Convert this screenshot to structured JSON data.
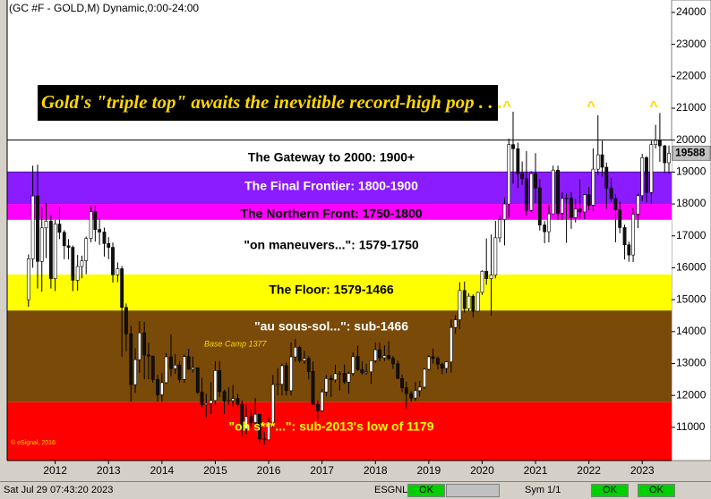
{
  "chart_data": {
    "type": "candlestick",
    "title": "(GC #F - GOLD,M) Dynamic,0:00-24:00",
    "x": [
      2011.5,
      2011.58,
      2011.67,
      2011.75,
      2011.83,
      2011.92,
      2012,
      2012.08,
      2012.17,
      2012.25,
      2012.33,
      2012.42,
      2012.5,
      2012.58,
      2012.67,
      2012.75,
      2012.83,
      2012.92,
      2013,
      2013.08,
      2013.17,
      2013.25,
      2013.33,
      2013.42,
      2013.5,
      2013.58,
      2013.67,
      2013.75,
      2013.83,
      2013.92,
      2014,
      2014.08,
      2014.17,
      2014.25,
      2014.33,
      2014.42,
      2014.5,
      2014.58,
      2014.67,
      2014.75,
      2014.83,
      2014.92,
      2015,
      2015.08,
      2015.17,
      2015.25,
      2015.33,
      2015.42,
      2015.5,
      2015.58,
      2015.67,
      2015.75,
      2015.83,
      2015.92,
      2016,
      2016.08,
      2016.17,
      2016.25,
      2016.33,
      2016.42,
      2016.5,
      2016.58,
      2016.67,
      2016.75,
      2016.83,
      2016.92,
      2017,
      2017.08,
      2017.17,
      2017.25,
      2017.33,
      2017.42,
      2017.5,
      2017.58,
      2017.67,
      2017.75,
      2017.83,
      2017.92,
      2018,
      2018.08,
      2018.17,
      2018.25,
      2018.33,
      2018.42,
      2018.5,
      2018.58,
      2018.67,
      2018.75,
      2018.83,
      2018.92,
      2019,
      2019.08,
      2019.17,
      2019.25,
      2019.33,
      2019.42,
      2019.5,
      2019.58,
      2019.67,
      2019.75,
      2019.83,
      2019.92,
      2020,
      2020.08,
      2020.17,
      2020.25,
      2020.33,
      2020.42,
      2020.5,
      2020.58,
      2020.67,
      2020.75,
      2020.83,
      2020.92,
      2021,
      2021.08,
      2021.17,
      2021.25,
      2021.33,
      2021.42,
      2021.5,
      2021.58,
      2021.67,
      2021.75,
      2021.83,
      2021.92,
      2022,
      2022.08,
      2022.17,
      2022.25,
      2022.33,
      2022.42,
      2022.5,
      2022.58,
      2022.67,
      2022.75,
      2022.83,
      2022.92,
      2023,
      2023.08,
      2023.17,
      2023.25,
      2023.33,
      2023.42,
      2023.5
    ],
    "open": [
      15000,
      16280,
      18250,
      16200,
      17250,
      17460,
      15660,
      17370,
      17110,
      16690,
      16640,
      15610,
      16040,
      16220,
      16920,
      17760,
      17200,
      17120,
      16760,
      16640,
      15780,
      15970,
      14760,
      13930,
      12340,
      13120,
      13960,
      13270,
      13230,
      12500,
      12020,
      12400,
      13210,
      12840,
      12950,
      12500,
      13220,
      12820,
      12870,
      12100,
      11710,
      11750,
      11840,
      12780,
      12120,
      11830,
      11840,
      11900,
      11720,
      10950,
      11340,
      11150,
      11410,
      10640,
      10610,
      11160,
      12340,
      12350,
      12930,
      12150,
      13210,
      13510,
      13090,
      13160,
      12750,
      11720,
      11520,
      12110,
      12530,
      12490,
      12680,
      12690,
      12420,
      12690,
      13220,
      12810,
      12710,
      12740,
      13090,
      13430,
      13180,
      13250,
      13160,
      12990,
      12530,
      12240,
      12060,
      11920,
      12150,
      12260,
      12820,
      13210,
      13160,
      12980,
      12850,
      13050,
      14130,
      14370,
      15290,
      14720,
      15110,
      14640,
      15230,
      15890,
      15660,
      15770,
      16940,
      17510,
      18000,
      19860,
      19730,
      18950,
      18790,
      17800,
      18950,
      18500,
      17340,
      17130,
      17690,
      19060,
      17710,
      18170,
      18180,
      17570,
      17840,
      17750,
      18290,
      17960,
      19090,
      19540,
      19150,
      18490,
      18170,
      17820,
      17260,
      16720,
      16400,
      17680,
      18260,
      19450,
      18360,
      19860,
      19990,
      19820,
      19290
    ],
    "high": [
      16420,
      19200,
      19230,
      17900,
      18030,
      17650,
      17500,
      17920,
      17180,
      16900,
      16700,
      16400,
      16380,
      16980,
      17950,
      17950,
      17540,
      17260,
      16960,
      16790,
      16170,
      16050,
      14880,
      14180,
      13480,
      14330,
      14300,
      13650,
      13250,
      12650,
      12700,
      13330,
      13920,
      13300,
      13070,
      13280,
      13460,
      13220,
      12870,
      12550,
      12050,
      12420,
      13070,
      13080,
      12180,
      12250,
      12330,
      12050,
      11840,
      11700,
      11570,
      11920,
      11420,
      10880,
      11300,
      12640,
      12860,
      13000,
      13030,
      13660,
      13770,
      13560,
      13400,
      13230,
      13060,
      11840,
      12200,
      12640,
      12640,
      12960,
      12760,
      12970,
      12750,
      13350,
      13560,
      13060,
      12990,
      13100,
      13660,
      13660,
      13570,
      13690,
      13240,
      13090,
      12660,
      12430,
      12140,
      12430,
      12450,
      12850,
      13260,
      13470,
      13220,
      13030,
      13070,
      14380,
      14520,
      15550,
      15570,
      15200,
      15170,
      15250,
      15920,
      16920,
      17040,
      17470,
      17650,
      18190,
      20050,
      20890,
      19920,
      19330,
      19660,
      19030,
      19590,
      18780,
      17460,
      17980,
      19200,
      19200,
      18360,
      18340,
      18360,
      18140,
      18770,
      18310,
      18530,
      19740,
      20780,
      19980,
      19300,
      18810,
      18300,
      18070,
      17350,
      16820,
      17870,
      18320,
      19570,
      19500,
      19980,
      20480,
      20850,
      19850,
      19830
    ],
    "low": [
      14780,
      16000,
      15350,
      15250,
      16300,
      15350,
      15270,
      16900,
      16270,
      16260,
      15270,
      15280,
      15670,
      15800,
      16800,
      16820,
      16720,
      16350,
      16270,
      15540,
      15550,
      13210,
      13380,
      11800,
      12080,
      12710,
      12510,
      12510,
      12400,
      11800,
      11800,
      12360,
      12600,
      12680,
      12400,
      12400,
      12800,
      12720,
      12050,
      11610,
      11310,
      11420,
      11680,
      11950,
      11420,
      11710,
      11650,
      11620,
      10720,
      10780,
      10980,
      10990,
      10520,
      10460,
      10610,
      11000,
      12000,
      12000,
      12000,
      12000,
      13050,
      13020,
      12990,
      12500,
      11710,
      11240,
      11500,
      11970,
      11950,
      12400,
      12150,
      12360,
      12050,
      12620,
      12770,
      12660,
      12650,
      12360,
      13020,
      13070,
      13080,
      13100,
      12830,
      12520,
      12100,
      11600,
      11800,
      11820,
      11960,
      12210,
      12780,
      13000,
      12810,
      12660,
      12700,
      12720,
      13940,
      14080,
      14600,
      14640,
      14450,
      14640,
      15150,
      15470,
      14500,
      15670,
      16800,
      16700,
      17570,
      18630,
      18500,
      18600,
      17640,
      17750,
      18020,
      17170,
      16770,
      16800,
      17680,
      17500,
      17500,
      16780,
      17220,
      17420,
      17520,
      17520,
      17800,
      17760,
      18900,
      18860,
      17850,
      18060,
      16800,
      17080,
      16260,
      16190,
      16180,
      17240,
      18090,
      18050,
      18000,
      19740,
      19320,
      18970,
      18950
    ],
    "close": [
      16280,
      18250,
      16200,
      17250,
      17460,
      15660,
      17370,
      17110,
      16690,
      16640,
      15610,
      16040,
      16220,
      16920,
      17760,
      17200,
      17120,
      16760,
      16640,
      15780,
      15970,
      14760,
      13930,
      12340,
      13120,
      13960,
      13270,
      13230,
      12500,
      12020,
      12400,
      13210,
      12840,
      12950,
      12500,
      13220,
      12820,
      12870,
      12100,
      11710,
      11750,
      11840,
      12780,
      12120,
      11830,
      11840,
      11900,
      11720,
      10950,
      11340,
      11150,
      11410,
      10640,
      10610,
      11160,
      12340,
      12350,
      12930,
      12150,
      13210,
      13510,
      13090,
      13160,
      12750,
      11720,
      11520,
      12110,
      12530,
      12490,
      12680,
      12690,
      12420,
      12690,
      13220,
      12810,
      12710,
      12740,
      13090,
      13430,
      13180,
      13250,
      13160,
      12990,
      12530,
      12240,
      12060,
      11920,
      12150,
      12260,
      12820,
      13210,
      13160,
      12980,
      12850,
      13050,
      14130,
      14370,
      15290,
      14720,
      15110,
      14640,
      15230,
      15890,
      15660,
      15770,
      16940,
      17510,
      18000,
      19860,
      19730,
      18950,
      18790,
      17800,
      18950,
      18500,
      17340,
      17130,
      17690,
      19060,
      17710,
      18170,
      18180,
      17570,
      17840,
      17750,
      18290,
      17960,
      19090,
      19540,
      19150,
      18490,
      18170,
      17820,
      17260,
      16720,
      16400,
      17680,
      18260,
      19450,
      18360,
      19860,
      19990,
      19820,
      19290,
      19588
    ],
    "up_color": "#ffffff",
    "down_color": "#111111",
    "outline_color": "#000000",
    "last_value": 19588,
    "xlim": [
      2011.1,
      2023.55
    ],
    "xticks": [
      2012,
      2013,
      2014,
      2015,
      2016,
      2017,
      2018,
      2019,
      2020,
      2021,
      2022,
      2023
    ],
    "ylim": [
      9960,
      24390
    ],
    "yticks": [
      11000,
      12000,
      13000,
      14000,
      15000,
      16000,
      17000,
      18000,
      19000,
      20000,
      21000,
      22000,
      23000,
      24000
    ],
    "grid": false,
    "bands": [
      {
        "label": "The Gateway to 2000:  1900+",
        "range": [
          19000,
          20000
        ],
        "color": "#ffffff",
        "label_color": "#000000",
        "outline": true
      },
      {
        "label": "The Final Frontier:  1800-1900",
        "range": [
          18000,
          19000
        ],
        "color": "#8a1cff",
        "label_color": "#ffffff",
        "outline": false
      },
      {
        "label": "The Northern Front:  1750-1800",
        "range": [
          17500,
          18000
        ],
        "color": "#ff00ff",
        "label_color": "#000000",
        "outline": false
      },
      {
        "label": "\"on maneuvers...\":  1579-1750",
        "range": [
          15790,
          17500
        ],
        "color": "#ffffff",
        "label_color": "#000000",
        "outline": false
      },
      {
        "label": "The Floor:  1579-1466",
        "range": [
          14660,
          15790
        ],
        "color": "#ffff00",
        "label_color": "#000000",
        "outline": false
      },
      {
        "label": "\"au sous-sol...\":  sub-1466",
        "range": [
          11790,
          14660
        ],
        "color": "#7a4a08",
        "label_color": "#ffffff",
        "outline": false
      },
      {
        "label": "\"oh s***...\":  sub-2013's low of 1179",
        "range": [
          9960,
          11790
        ],
        "color": "#ff0000",
        "label_color": "#ffff00",
        "outline": false
      }
    ]
  },
  "annotations": {
    "banner": "Gold's \"triple top\" awaits the inevitible record-high pop . . .",
    "peak_markers": [
      "^",
      "^",
      "^"
    ],
    "base_camp": "Base Camp 1377",
    "copyright": "© eSignal, 2016"
  },
  "status_bar": {
    "datetime": "Sat Jul 29 07:43:20 2023",
    "feed": "ESGNL:",
    "feed_status": "OK",
    "symbol": "Sym 1/1",
    "status_2": "OK",
    "status_3": "OK"
  }
}
